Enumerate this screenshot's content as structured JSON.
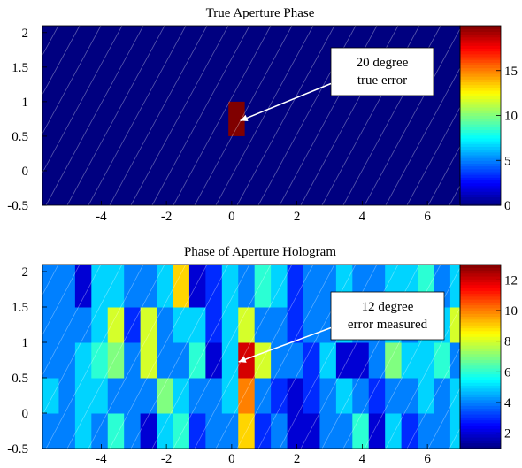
{
  "chart_data": [
    {
      "type": "heatmap",
      "title": "True Aperture Phase",
      "xlabel": "",
      "ylabel": "",
      "xlim": [
        -5.8,
        7.0
      ],
      "ylim": [
        -0.5,
        2.1
      ],
      "xticks": [
        "-4",
        "-2",
        "0",
        "2",
        "4",
        "6"
      ],
      "xtick_values": [
        -4,
        -2,
        0,
        2,
        4,
        6
      ],
      "yticks": [
        "-0.5",
        "0",
        "0.5",
        "1",
        "1.5",
        "2"
      ],
      "ytick_values": [
        -0.5,
        0,
        0.5,
        1,
        1.5,
        2
      ],
      "background_value": 0,
      "cells": [
        {
          "x0": -0.1,
          "x1": 0.4,
          "y0": 0.5,
          "y1": 1.0,
          "value": 20
        }
      ],
      "colorbar": {
        "min": 0,
        "max": 20,
        "ticks": [
          "0",
          "5",
          "10",
          "15"
        ],
        "tick_values": [
          0,
          5,
          10,
          15
        ]
      },
      "annotation": {
        "lines": [
          "20 degree",
          "true error"
        ],
        "target": [
          0.1,
          0.75
        ]
      }
    },
    {
      "type": "heatmap",
      "title": "Phase of Aperture Hologram",
      "xlabel": "",
      "ylabel": "",
      "xlim": [
        -5.8,
        7.0
      ],
      "ylim": [
        -0.5,
        2.1
      ],
      "xticks": [
        "-4",
        "-2",
        "0",
        "2",
        "4",
        "6"
      ],
      "xtick_values": [
        -4,
        -2,
        0,
        2,
        4,
        6
      ],
      "yticks": [
        "-0.5",
        "0",
        "0.5",
        "1",
        "1.5",
        "2"
      ],
      "ytick_values": [
        -0.5,
        0,
        0.5,
        1,
        1.5,
        2
      ],
      "grid": {
        "x_edges": [
          -5.8,
          -5.3,
          -4.8,
          -4.3,
          -3.8,
          -3.3,
          -2.8,
          -2.3,
          -1.8,
          -1.3,
          -0.8,
          -0.3,
          0.2,
          0.7,
          1.2,
          1.7,
          2.2,
          2.7,
          3.2,
          3.7,
          4.2,
          4.7,
          5.2,
          5.7,
          6.2,
          6.7,
          7.0
        ],
        "y_edges": [
          -0.5,
          0.0,
          0.5,
          1.0,
          1.5,
          2.1
        ],
        "values": [
          [
            4,
            4,
            5,
            4,
            6,
            4,
            2,
            5,
            6,
            3,
            4,
            4,
            9,
            3,
            4,
            2,
            2,
            4,
            4,
            6,
            2,
            5,
            3,
            4,
            4,
            5
          ],
          [
            5,
            4,
            5,
            5,
            4,
            4,
            4,
            7,
            5,
            4,
            4,
            5,
            10,
            4,
            3,
            2,
            3,
            4,
            5,
            4,
            3,
            4,
            4,
            5,
            4,
            5
          ],
          [
            4,
            4,
            5,
            6,
            7,
            4,
            8,
            4,
            4,
            6,
            2,
            5,
            12,
            8,
            4,
            4,
            3,
            5,
            2,
            2,
            4,
            7,
            5,
            5,
            6,
            4
          ],
          [
            4,
            4,
            4,
            5,
            8,
            3,
            8,
            4,
            5,
            5,
            3,
            5,
            8,
            4,
            4,
            3,
            4,
            4,
            5,
            4,
            4,
            5,
            4,
            5,
            5,
            8
          ],
          [
            4,
            4,
            2,
            5,
            5,
            4,
            4,
            5,
            9,
            2,
            3,
            5,
            4,
            6,
            5,
            3,
            4,
            4,
            5,
            4,
            4,
            5,
            5,
            6,
            4,
            5
          ]
        ]
      },
      "colorbar": {
        "min": 1,
        "max": 13,
        "ticks": [
          "2",
          "4",
          "6",
          "8",
          "10",
          "12"
        ],
        "tick_values": [
          2,
          4,
          6,
          8,
          10,
          12
        ]
      },
      "annotation": {
        "lines": [
          "12 degree",
          "error measured"
        ],
        "target": [
          0.05,
          0.75
        ]
      }
    }
  ]
}
